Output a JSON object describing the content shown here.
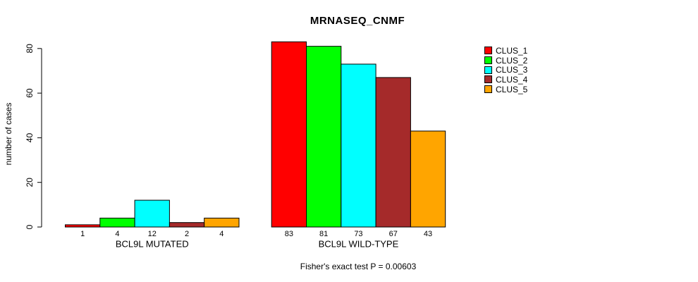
{
  "chart_data": {
    "type": "bar",
    "title": "MRNASEQ_CNMF",
    "ylabel": "number of cases",
    "xlabel": "",
    "annotation": "Fisher's exact test P = 0.00603",
    "grid": false,
    "legend_position": "right",
    "ylim": [
      0,
      88
    ],
    "yticks": [
      0,
      20,
      40,
      60,
      80
    ],
    "categories": [
      "BCL9L MUTATED",
      "BCL9L WILD-TYPE"
    ],
    "series": [
      {
        "name": "CLUS_1",
        "color": "#FF0000",
        "values": [
          1,
          83
        ]
      },
      {
        "name": "CLUS_2",
        "color": "#00FF00",
        "values": [
          4,
          81
        ]
      },
      {
        "name": "CLUS_3",
        "color": "#00FFFF",
        "values": [
          12,
          73
        ]
      },
      {
        "name": "CLUS_4",
        "color": "#A52A2A",
        "values": [
          2,
          67
        ]
      },
      {
        "name": "CLUS_5",
        "color": "#FFA500",
        "values": [
          4,
          43
        ]
      }
    ],
    "bar_value_labels_shown": true,
    "axis_color": "#000000",
    "bar_border_color": "#000000"
  }
}
